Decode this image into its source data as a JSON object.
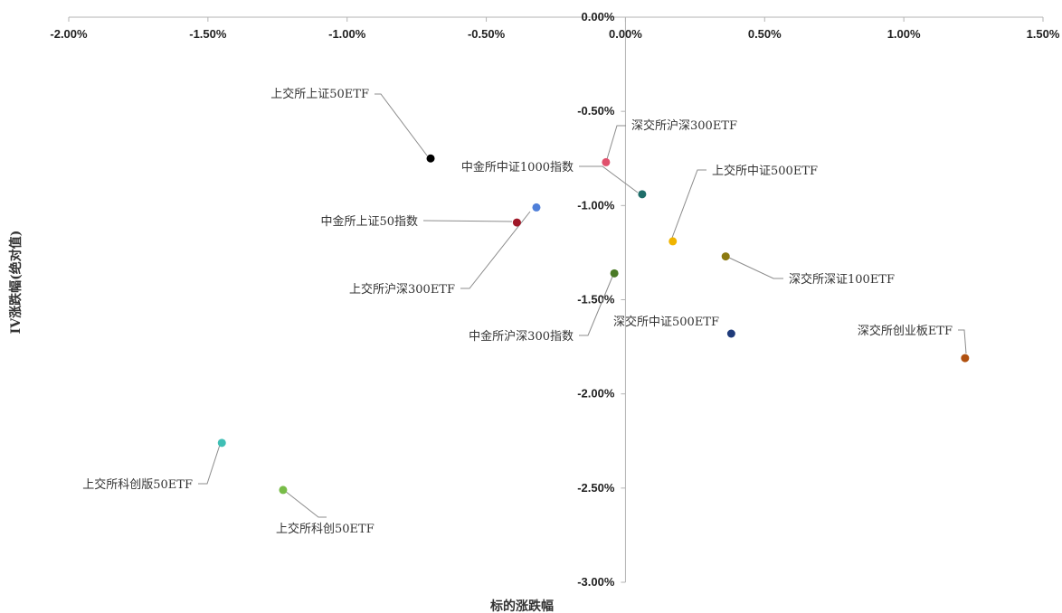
{
  "chart_data": {
    "type": "scatter",
    "title": "",
    "xlabel": "标的涨跌幅",
    "ylabel": "IV涨跌幅(绝对值)",
    "xlim": [
      -2.0,
      1.5
    ],
    "ylim": [
      -3.0,
      0.0
    ],
    "x_ticks": [
      "-2.00%",
      "-1.50%",
      "-1.00%",
      "-0.50%",
      "0.00%",
      "0.50%",
      "1.00%",
      "1.50%"
    ],
    "y_ticks": [
      "0.00%",
      "-0.50%",
      "-1.00%",
      "-1.50%",
      "-2.00%",
      "-2.50%",
      "-3.00%"
    ],
    "grid": false,
    "points": [
      {
        "label": "上交所上证50ETF",
        "x": -0.7,
        "y": -0.75,
        "color": "#000000"
      },
      {
        "label": "深交所沪深300ETF",
        "x": -0.07,
        "y": -0.77,
        "color": "#e0506c"
      },
      {
        "label": "中金所中证1000指数",
        "x": 0.06,
        "y": -0.94,
        "color": "#1f6e6a"
      },
      {
        "label": "中金所上证50指数",
        "x": -0.39,
        "y": -1.09,
        "color": "#a01828"
      },
      {
        "label": "上交所沪深300ETF",
        "x": -0.32,
        "y": -1.01,
        "color": "#4f7fd9"
      },
      {
        "label": "上交所中证500ETF",
        "x": 0.17,
        "y": -1.19,
        "color": "#f0b400"
      },
      {
        "label": "深交所深证100ETF",
        "x": 0.36,
        "y": -1.27,
        "color": "#8c7a10"
      },
      {
        "label": "中金所沪深300指数",
        "x": -0.04,
        "y": -1.36,
        "color": "#4a7a26"
      },
      {
        "label": "深交所中证500ETF",
        "x": 0.38,
        "y": -1.68,
        "color": "#1f3b7a"
      },
      {
        "label": "深交所创业板ETF",
        "x": 1.22,
        "y": -1.81,
        "color": "#b0500f"
      },
      {
        "label": "上交所科创版50ETF",
        "x": -1.45,
        "y": -2.26,
        "color": "#3fbfb5"
      },
      {
        "label": "上交所科创50ETF",
        "x": -1.23,
        "y": -2.51,
        "color": "#78bc48"
      }
    ]
  }
}
